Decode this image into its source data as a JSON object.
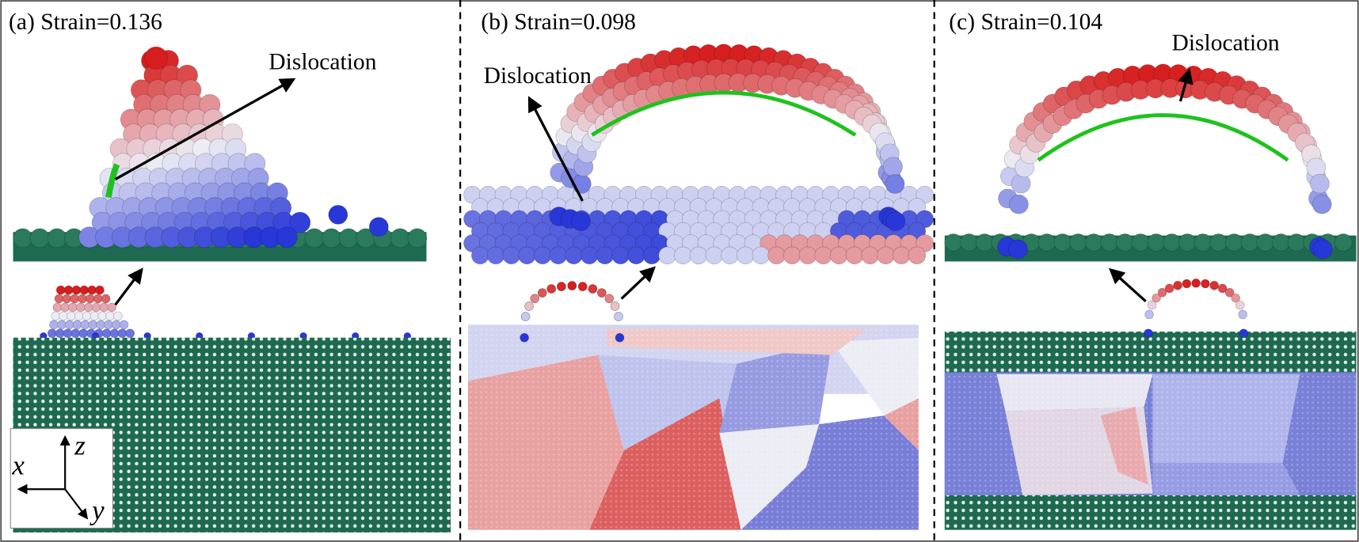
{
  "panels": [
    {
      "caption": "(a) Strain=0.136",
      "annotation": "Dislocation"
    },
    {
      "caption": "(b) Strain=0.098",
      "annotation": "Dislocation"
    },
    {
      "caption": "(c) Strain=0.104",
      "annotation": "Dislocation"
    }
  ],
  "axes": {
    "x": "x",
    "y": "y",
    "z": "z"
  }
}
